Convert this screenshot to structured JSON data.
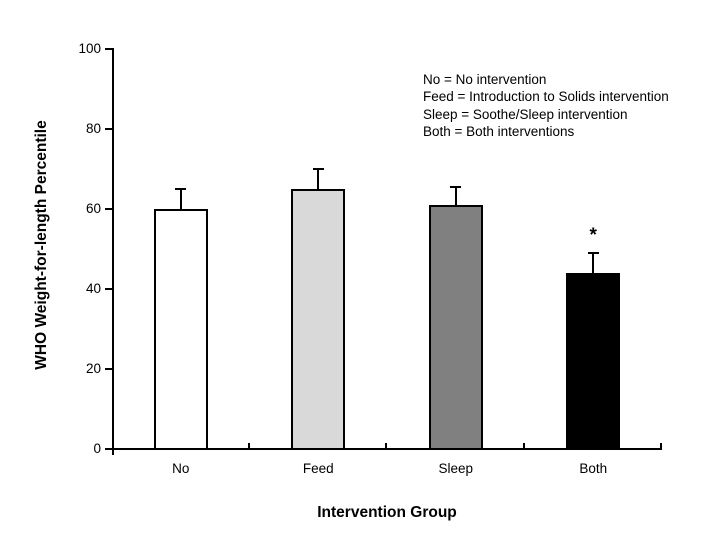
{
  "chart_data": {
    "type": "bar",
    "title": "",
    "xlabel": "Intervention Group",
    "ylabel": "WHO Weight-for-length Percentile",
    "categories": [
      "No",
      "Feed",
      "Sleep",
      "Both"
    ],
    "values": [
      60,
      65,
      61,
      44
    ],
    "errors_up": [
      5,
      5,
      4.5,
      5
    ],
    "bar_fill_colors": [
      "#ffffff",
      "#d9d9d9",
      "#808080",
      "#000000"
    ],
    "bar_border_color": "#000000",
    "axis_color": "#000000",
    "ylim": [
      0,
      100
    ],
    "yticks": [
      "0",
      "20",
      "40",
      "60",
      "80",
      "100"
    ],
    "grid": false,
    "legend_position": "top-right-inside",
    "legend_lines": [
      "No = No intervention",
      "Feed = Introduction to Solids intervention",
      "Sleep = Soothe/Sleep intervention",
      "Both = Both interventions"
    ],
    "annotations": [
      {
        "text": "*",
        "category": "Both",
        "position": "above-error-bar"
      }
    ]
  }
}
